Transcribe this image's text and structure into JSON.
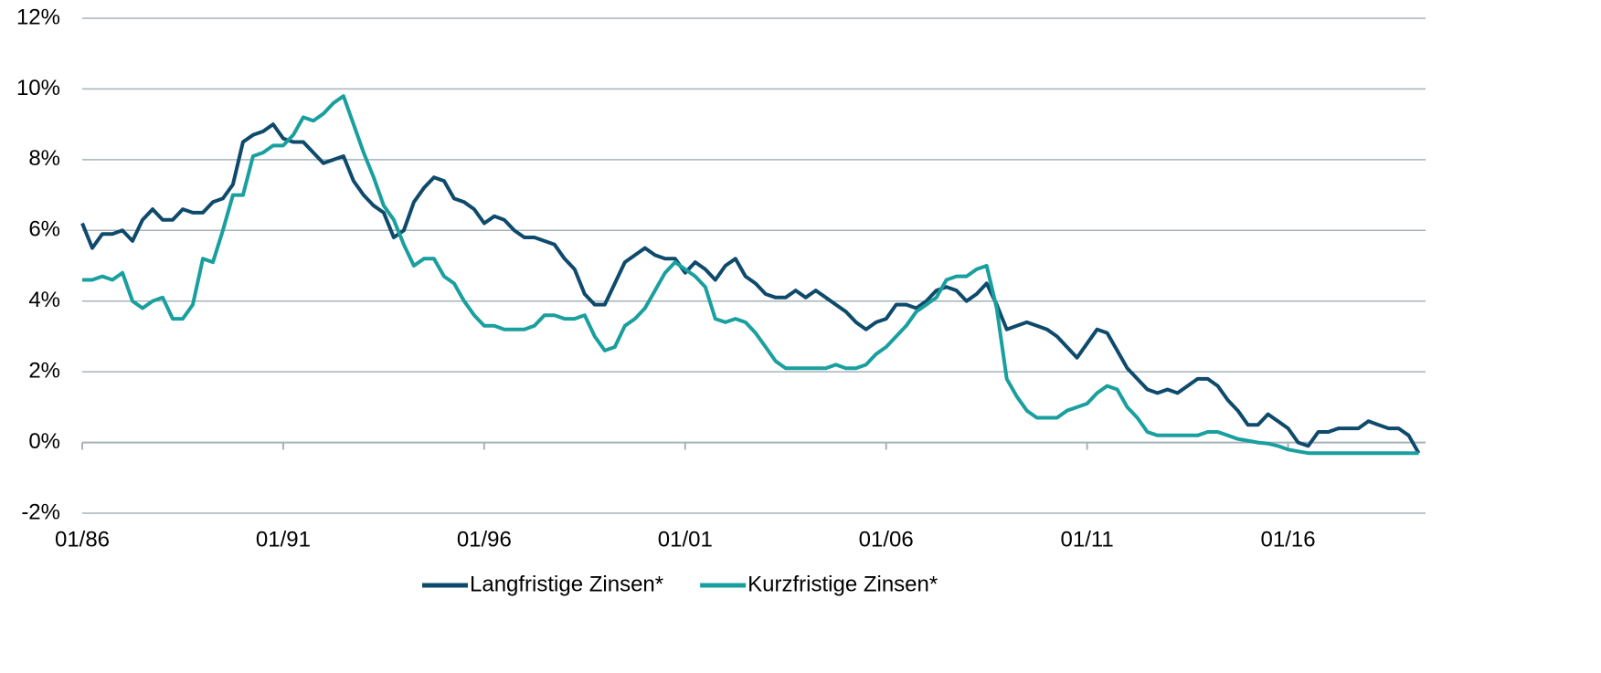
{
  "chart_data": {
    "type": "line",
    "x": [
      1986,
      1986.25,
      1986.5,
      1986.75,
      1987,
      1987.25,
      1987.5,
      1987.75,
      1988,
      1988.25,
      1988.5,
      1988.75,
      1989,
      1989.25,
      1989.5,
      1989.75,
      1990,
      1990.25,
      1990.5,
      1990.75,
      1991,
      1991.25,
      1991.5,
      1991.75,
      1992,
      1992.25,
      1992.5,
      1992.75,
      1993,
      1993.25,
      1993.5,
      1993.75,
      1994,
      1994.25,
      1994.5,
      1994.75,
      1995,
      1995.25,
      1995.5,
      1995.75,
      1996,
      1996.25,
      1996.5,
      1996.75,
      1997,
      1997.25,
      1997.5,
      1997.75,
      1998,
      1998.25,
      1998.5,
      1998.75,
      1999,
      1999.25,
      1999.5,
      1999.75,
      2000,
      2000.25,
      2000.5,
      2000.75,
      2001,
      2001.25,
      2001.5,
      2001.75,
      2002,
      2002.25,
      2002.5,
      2002.75,
      2003,
      2003.25,
      2003.5,
      2003.75,
      2004,
      2004.25,
      2004.5,
      2004.75,
      2005,
      2005.25,
      2005.5,
      2005.75,
      2006,
      2006.25,
      2006.5,
      2006.75,
      2007,
      2007.25,
      2007.5,
      2007.75,
      2008,
      2008.25,
      2008.5,
      2008.75,
      2009,
      2009.25,
      2009.5,
      2009.75,
      2010,
      2010.25,
      2010.5,
      2010.75,
      2011,
      2011.25,
      2011.5,
      2011.75,
      2012,
      2012.25,
      2012.5,
      2012.75,
      2013,
      2013.25,
      2013.5,
      2013.75,
      2014,
      2014.25,
      2014.5,
      2014.75,
      2015,
      2015.25,
      2015.5,
      2015.75,
      2016,
      2016.25,
      2016.5,
      2016.75,
      2017,
      2017.25,
      2017.5,
      2017.75,
      2018,
      2018.25,
      2018.5,
      2018.75,
      2019,
      2019.25
    ],
    "series": [
      {
        "name": "Langfristige Zinsen*",
        "color": "#0e4a6c",
        "values": [
          6.2,
          5.5,
          5.9,
          5.9,
          6.0,
          5.7,
          6.3,
          6.6,
          6.3,
          6.3,
          6.6,
          6.5,
          6.5,
          6.8,
          6.9,
          7.3,
          8.5,
          8.7,
          8.8,
          9.0,
          8.6,
          8.5,
          8.5,
          8.2,
          7.9,
          8.0,
          8.1,
          7.4,
          7.0,
          6.7,
          6.5,
          5.8,
          6.0,
          6.8,
          7.2,
          7.5,
          7.4,
          6.9,
          6.8,
          6.6,
          6.2,
          6.4,
          6.3,
          6.0,
          5.8,
          5.8,
          5.7,
          5.6,
          5.2,
          4.9,
          4.2,
          3.9,
          3.9,
          4.5,
          5.1,
          5.3,
          5.5,
          5.3,
          5.2,
          5.2,
          4.8,
          5.1,
          4.9,
          4.6,
          5.0,
          5.2,
          4.7,
          4.5,
          4.2,
          4.1,
          4.1,
          4.3,
          4.1,
          4.3,
          4.1,
          3.9,
          3.7,
          3.4,
          3.2,
          3.4,
          3.5,
          3.9,
          3.9,
          3.8,
          4.0,
          4.3,
          4.4,
          4.3,
          4.0,
          4.2,
          4.5,
          3.9,
          3.2,
          3.3,
          3.4,
          3.3,
          3.2,
          3.0,
          2.7,
          2.4,
          2.8,
          3.2,
          3.1,
          2.6,
          2.1,
          1.8,
          1.5,
          1.4,
          1.5,
          1.4,
          1.6,
          1.8,
          1.8,
          1.6,
          1.2,
          0.9,
          0.5,
          0.5,
          0.8,
          0.6,
          0.4,
          0.0,
          -0.1,
          0.3,
          0.3,
          0.4,
          0.4,
          0.4,
          0.6,
          0.5,
          0.4,
          0.4,
          0.2,
          -0.3
        ]
      },
      {
        "name": "Kurzfristige Zinsen*",
        "color": "#1a9f9f",
        "values": [
          4.6,
          4.6,
          4.7,
          4.6,
          4.8,
          4.0,
          3.8,
          4.0,
          4.1,
          3.5,
          3.5,
          3.9,
          5.2,
          5.1,
          6.0,
          7.0,
          7.0,
          8.1,
          8.2,
          8.4,
          8.4,
          8.7,
          9.2,
          9.1,
          9.3,
          9.6,
          9.8,
          9.0,
          8.2,
          7.5,
          6.7,
          6.3,
          5.6,
          5.0,
          5.2,
          5.2,
          4.7,
          4.5,
          4.0,
          3.6,
          3.3,
          3.3,
          3.2,
          3.2,
          3.2,
          3.3,
          3.6,
          3.6,
          3.5,
          3.5,
          3.6,
          3.0,
          2.6,
          2.7,
          3.3,
          3.5,
          3.8,
          4.3,
          4.8,
          5.1,
          4.9,
          4.7,
          4.4,
          3.5,
          3.4,
          3.5,
          3.4,
          3.1,
          2.7,
          2.3,
          2.1,
          2.1,
          2.1,
          2.1,
          2.1,
          2.2,
          2.1,
          2.1,
          2.2,
          2.5,
          2.7,
          3.0,
          3.3,
          3.7,
          3.9,
          4.1,
          4.6,
          4.7,
          4.7,
          4.9,
          5.0,
          3.8,
          1.8,
          1.3,
          0.9,
          0.7,
          0.7,
          0.7,
          0.9,
          1.0,
          1.1,
          1.4,
          1.6,
          1.5,
          1.0,
          0.7,
          0.3,
          0.2,
          0.2,
          0.2,
          0.2,
          0.2,
          0.3,
          0.3,
          0.2,
          0.1,
          0.05,
          0.0,
          -0.03,
          -0.1,
          -0.2,
          -0.25,
          -0.3,
          -0.3,
          -0.3,
          -0.3,
          -0.3,
          -0.3,
          -0.3,
          -0.3,
          -0.3,
          -0.3,
          -0.3,
          -0.3
        ]
      }
    ],
    "xlim": [
      1986,
      2019.42
    ],
    "xticks": [
      {
        "value": 1986,
        "label": "01/86"
      },
      {
        "value": 1991,
        "label": "01/91"
      },
      {
        "value": 1996,
        "label": "01/96"
      },
      {
        "value": 2001,
        "label": "01/01"
      },
      {
        "value": 2006,
        "label": "01/06"
      },
      {
        "value": 2011,
        "label": "01/11"
      },
      {
        "value": 2016,
        "label": "01/16"
      }
    ],
    "ylim": [
      -2,
      12
    ],
    "yticks": [
      {
        "value": -2,
        "label": "-2%"
      },
      {
        "value": 0,
        "label": "0%"
      },
      {
        "value": 2,
        "label": "2%"
      },
      {
        "value": 4,
        "label": "4%"
      },
      {
        "value": 6,
        "label": "6%"
      },
      {
        "value": 8,
        "label": "8%"
      },
      {
        "value": 10,
        "label": "10%"
      },
      {
        "value": 12,
        "label": "12%"
      }
    ],
    "grid": true,
    "legend": "bottom"
  }
}
